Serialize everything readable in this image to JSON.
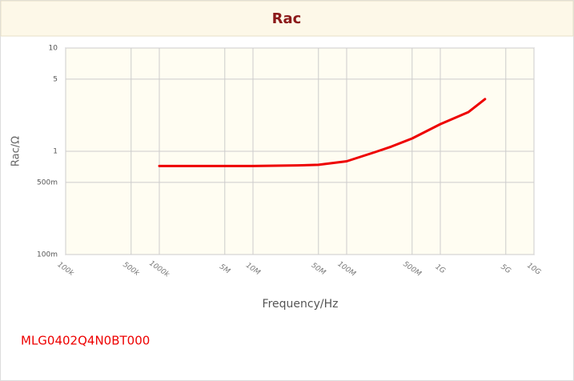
{
  "chart_data": {
    "type": "line",
    "title": "Rac",
    "xlabel": "Frequency/Hz",
    "ylabel": "Rac/Ω",
    "x": [
      1000000,
      3000000,
      10000000,
      30000000,
      50000000,
      100000000,
      200000000,
      300000000,
      500000000,
      1000000000,
      2000000000,
      3000000000
    ],
    "series": [
      {
        "name": "MLG0402Q4N0BT000",
        "color": "#ee0000",
        "values": [
          0.72,
          0.72,
          0.72,
          0.73,
          0.74,
          0.8,
          0.98,
          1.11,
          1.33,
          1.83,
          2.4,
          3.2
        ]
      }
    ],
    "xscale": "log",
    "yscale": "log",
    "grid": true,
    "xlim": [
      100000,
      10000000000
    ],
    "ylim": [
      0.1,
      10
    ],
    "xticks": [
      {
        "value": 100000,
        "label": "100k"
      },
      {
        "value": 500000,
        "label": "500k"
      },
      {
        "value": 1000000,
        "label": "1000k"
      },
      {
        "value": 5000000,
        "label": "5M"
      },
      {
        "value": 10000000,
        "label": "10M"
      },
      {
        "value": 50000000,
        "label": "50M"
      },
      {
        "value": 100000000,
        "label": "100M"
      },
      {
        "value": 500000000,
        "label": "500M"
      },
      {
        "value": 1000000000,
        "label": "1G"
      },
      {
        "value": 5000000000,
        "label": "5G"
      },
      {
        "value": 10000000000,
        "label": "10G"
      }
    ],
    "yticks": [
      {
        "value": 0.1,
        "label": "100m"
      },
      {
        "value": 0.5,
        "label": "500m"
      },
      1,
      5,
      10
    ]
  }
}
